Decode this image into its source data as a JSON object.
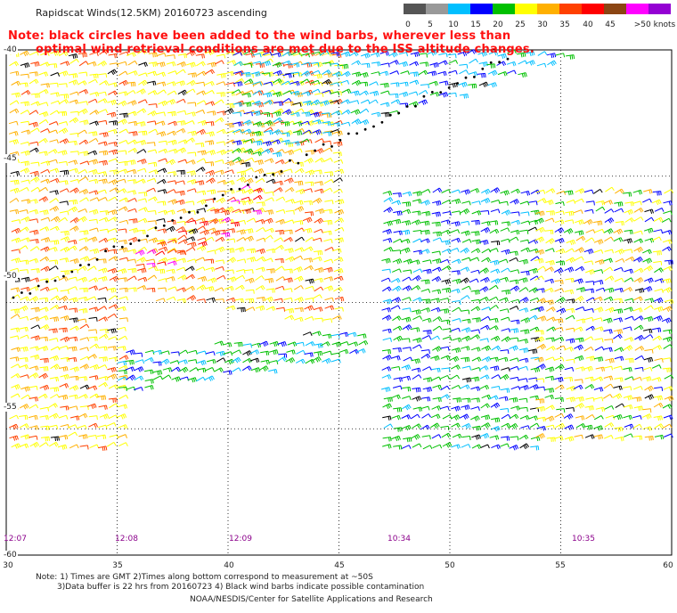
{
  "header": {
    "title": "Rapidscat Winds(12.5KM) 20160723 ascending",
    "note_line1": "Note: black circles have been added to the wind barbs, wherever less than",
    "note_line2": "optimal wind retrieval conditions are met due to the ISS altitude changes."
  },
  "legend": {
    "units": ">50 knots",
    "entries": [
      {
        "label": "0",
        "color": "#555555"
      },
      {
        "label": "5",
        "color": "#999999"
      },
      {
        "label": "10",
        "color": "#00bfff"
      },
      {
        "label": "15",
        "color": "#0000ff"
      },
      {
        "label": "20",
        "color": "#00c000"
      },
      {
        "label": "25",
        "color": "#ffff00"
      },
      {
        "label": "30",
        "color": "#ffb000"
      },
      {
        "label": "35",
        "color": "#ff4000"
      },
      {
        "label": "40",
        "color": "#ff0000"
      },
      {
        "label": "45",
        "color": "#8b4513"
      },
      {
        "label": "",
        "color": "#ff00ff"
      },
      {
        "label": "",
        "color": "#9400d3"
      }
    ],
    "extra_labels": [
      "45"
    ]
  },
  "map": {
    "lon_labels": [
      "30",
      "35",
      "40",
      "45",
      "50",
      "55",
      "60"
    ],
    "lat_labels": [
      "-40",
      "-45",
      "-50",
      "-55",
      "-60"
    ],
    "time_labels": [
      "12:07",
      "12:08",
      "12:09",
      "10:34",
      "10:35"
    ]
  },
  "footer": {
    "line1": "Note: 1) Times are GMT 2)Times along bottom correspond to measurement at ~50S",
    "line2": "3)Data buffer is 22 hrs from 20160723 4) Black wind barbs indicate possible contamination",
    "line3": "NOAA/NESDIS/Center for Satellite Applications and Research"
  }
}
